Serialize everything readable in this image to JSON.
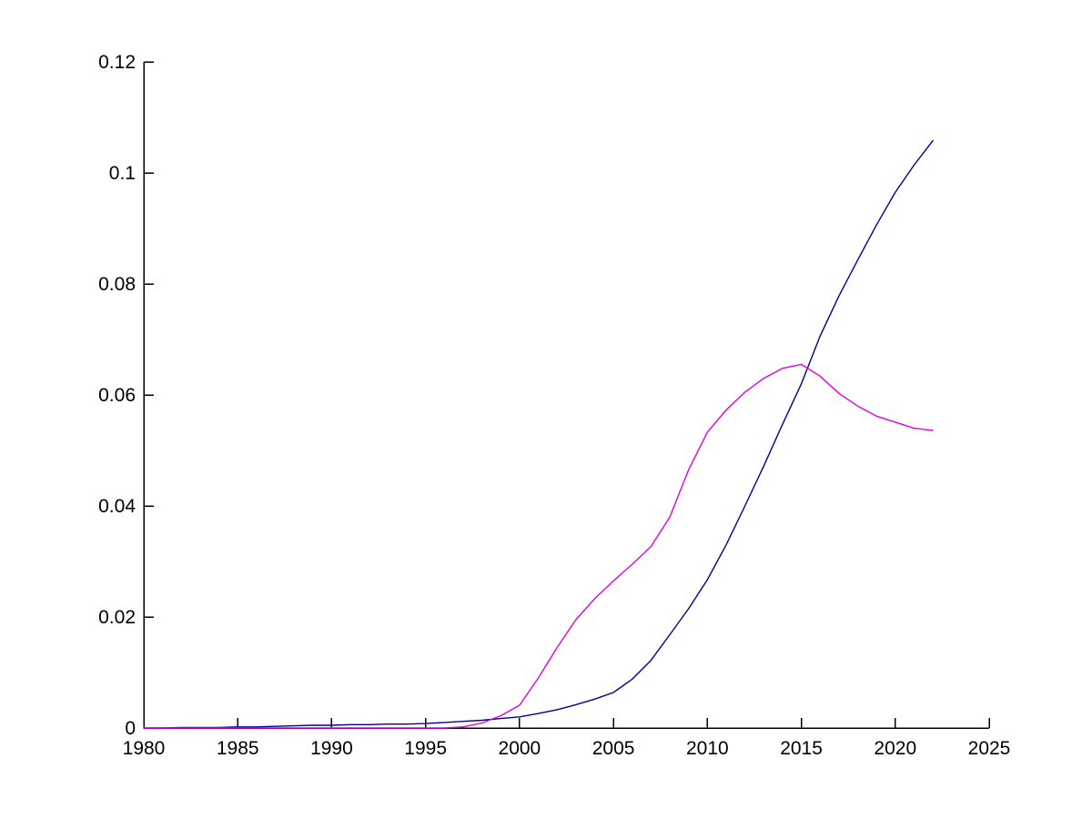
{
  "figure": {
    "background_color": "#ffffff",
    "axis_color": "#000000"
  },
  "chart_data": {
    "type": "line",
    "title": "",
    "xlabel": "",
    "ylabel": "",
    "grid": false,
    "legend": null,
    "xlim": [
      1980,
      2025
    ],
    "ylim": [
      0,
      0.12
    ],
    "xticks": {
      "values": [
        1980,
        1985,
        1990,
        1995,
        2000,
        2005,
        2010,
        2015,
        2020,
        2025
      ],
      "labels": [
        "1980",
        "1985",
        "1990",
        "1995",
        "2000",
        "2005",
        "2010",
        "2015",
        "2020",
        "2025"
      ]
    },
    "yticks": {
      "values": [
        0,
        0.02,
        0.04,
        0.06,
        0.08,
        0.1,
        0.12
      ],
      "labels": [
        "0",
        "0.02",
        "0.04",
        "0.06",
        "0.08",
        "0.1",
        "0.12"
      ]
    },
    "x": [
      1980,
      1981,
      1982,
      1983,
      1984,
      1985,
      1986,
      1987,
      1988,
      1989,
      1990,
      1991,
      1992,
      1993,
      1994,
      1995,
      1996,
      1997,
      1998,
      1999,
      2000,
      2001,
      2002,
      2003,
      2004,
      2005,
      2006,
      2007,
      2008,
      2009,
      2010,
      2011,
      2012,
      2013,
      2014,
      2015,
      2016,
      2017,
      2018,
      2019,
      2020,
      2021,
      2022
    ],
    "series": [
      {
        "name": "blue-series",
        "color": "#000099",
        "values": [
          0,
          0,
          0.0001,
          0.0001,
          0.0001,
          0.0002,
          0.0002,
          0.0003,
          0.0004,
          0.0005,
          0.0005,
          0.0006,
          0.0006,
          0.0007,
          0.0007,
          0.0008,
          0.001,
          0.0012,
          0.0014,
          0.0017,
          0.002,
          0.0026,
          0.0033,
          0.0042,
          0.0052,
          0.0064,
          0.0088,
          0.0122,
          0.0168,
          0.0215,
          0.0267,
          0.033,
          0.04,
          0.0472,
          0.0547,
          0.062,
          0.0706,
          0.0778,
          0.0843,
          0.0906,
          0.0965,
          0.1014,
          0.1058
        ]
      },
      {
        "name": "magenta-series",
        "color": "#E000E0",
        "values": [
          0,
          0,
          0,
          0,
          0,
          0,
          0,
          0,
          0,
          0,
          0,
          0,
          0,
          0,
          0,
          0,
          0,
          0.0002,
          0.0009,
          0.0022,
          0.0041,
          0.009,
          0.0145,
          0.0195,
          0.0233,
          0.0265,
          0.0295,
          0.0327,
          0.038,
          0.0465,
          0.0533,
          0.0573,
          0.0605,
          0.063,
          0.0648,
          0.0655,
          0.0634,
          0.0603,
          0.058,
          0.0562,
          0.0551,
          0.054,
          0.0536
        ]
      }
    ]
  }
}
